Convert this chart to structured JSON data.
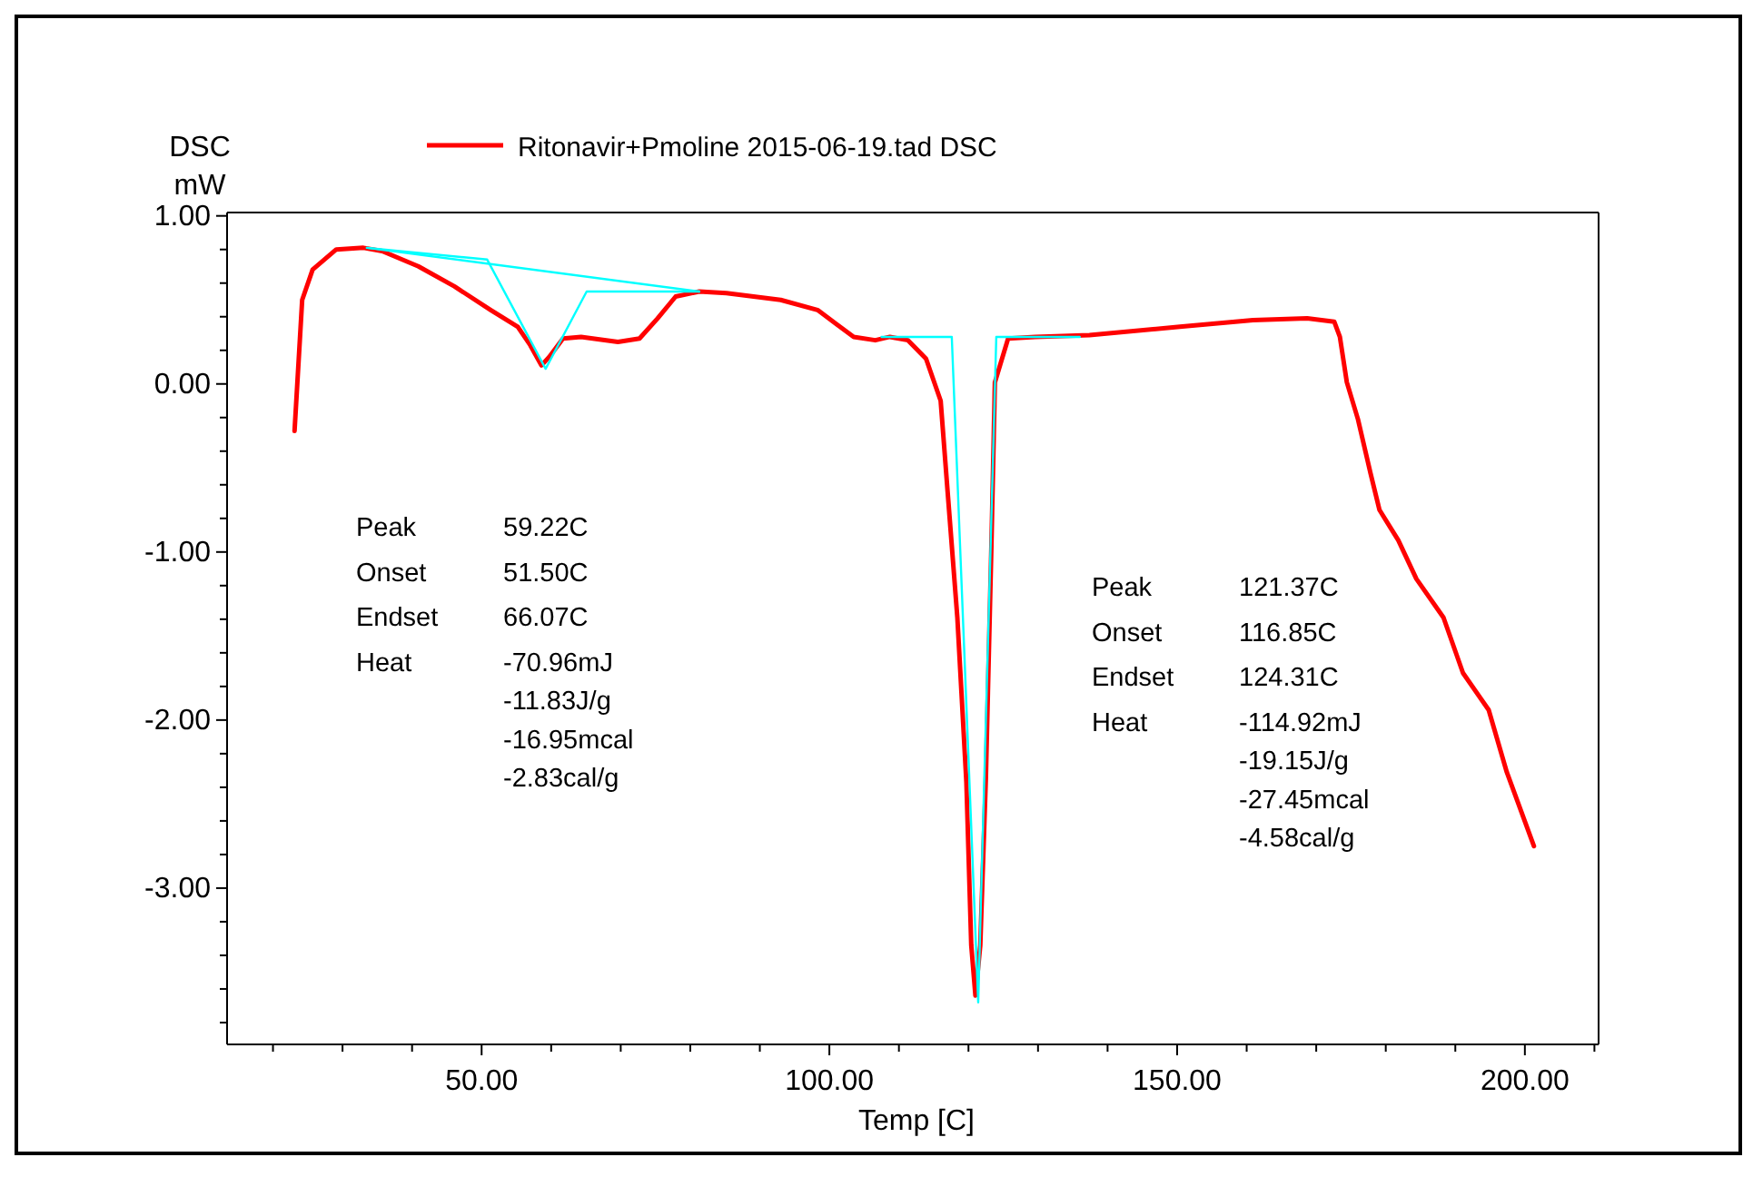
{
  "chart_data": {
    "type": "line",
    "xlabel": "Temp  [C]",
    "ylabel": "DSC\nmW",
    "xlim": [
      13.4,
      210.6
    ],
    "ylim": [
      -3.93,
      1.02
    ],
    "xticks": [
      {
        "value": 20,
        "label": null
      },
      {
        "value": 30,
        "label": null
      },
      {
        "value": 40,
        "label": null
      },
      {
        "value": 50,
        "label": "50.00"
      },
      {
        "value": 60,
        "label": null
      },
      {
        "value": 70,
        "label": null
      },
      {
        "value": 80,
        "label": null
      },
      {
        "value": 90,
        "label": null
      },
      {
        "value": 100,
        "label": "100.00"
      },
      {
        "value": 110,
        "label": null
      },
      {
        "value": 120,
        "label": null
      },
      {
        "value": 130,
        "label": null
      },
      {
        "value": 140,
        "label": null
      },
      {
        "value": 150,
        "label": "150.00"
      },
      {
        "value": 160,
        "label": null
      },
      {
        "value": 170,
        "label": null
      },
      {
        "value": 180,
        "label": null
      },
      {
        "value": 190,
        "label": null
      },
      {
        "value": 200,
        "label": "200.00"
      },
      {
        "value": 210,
        "label": null
      }
    ],
    "yticks": [
      {
        "value": -3.8,
        "label": null
      },
      {
        "value": -3.6,
        "label": null
      },
      {
        "value": -3.4,
        "label": null
      },
      {
        "value": -3.2,
        "label": null
      },
      {
        "value": -3,
        "label": "-3.00"
      },
      {
        "value": -2.8,
        "label": null
      },
      {
        "value": -2.6,
        "label": null
      },
      {
        "value": -2.4,
        "label": null
      },
      {
        "value": -2.2,
        "label": null
      },
      {
        "value": -2,
        "label": "-2.00"
      },
      {
        "value": -1.8,
        "label": null
      },
      {
        "value": -1.6,
        "label": null
      },
      {
        "value": -1.4,
        "label": null
      },
      {
        "value": -1.2,
        "label": null
      },
      {
        "value": -1,
        "label": "-1.00"
      },
      {
        "value": -0.8,
        "label": null
      },
      {
        "value": -0.6,
        "label": null
      },
      {
        "value": -0.4,
        "label": null
      },
      {
        "value": -0.2,
        "label": null
      },
      {
        "value": 0,
        "label": "0.00"
      },
      {
        "value": 0.2,
        "label": null
      },
      {
        "value": 0.4,
        "label": null
      },
      {
        "value": 0.6,
        "label": null
      },
      {
        "value": 0.8,
        "label": null
      },
      {
        "value": 1,
        "label": "1.00"
      }
    ],
    "grid": false,
    "legend": "top",
    "line_style": "solid",
    "marker": "none",
    "series": [
      {
        "name": "Ritonavir+Pmoline 2015-06-19.tad  DSC",
        "color": "#ff0000",
        "x": [
          23.1,
          24.2,
          25.7,
          29.1,
          33.0,
          35.7,
          40.9,
          46.1,
          51.3,
          55.2,
          57.0,
          58.6,
          59.7,
          61.7,
          64.3,
          69.6,
          72.7,
          75.3,
          77.9,
          81.3,
          85.2,
          93.0,
          98.3,
          100.9,
          103.5,
          106.6,
          108.7,
          111.3,
          113.9,
          116.0,
          117.0,
          118.4,
          119.7,
          120.4,
          121.0,
          121.7,
          122.5,
          123.3,
          123.8,
          125.7,
          129.6,
          137.4,
          150.4,
          160.9,
          168.7,
          172.6,
          173.4,
          174.4,
          176.0,
          177.8,
          179.1,
          181.8,
          184.4,
          188.3,
          191.1,
          194.8,
          197.4,
          201.3
        ],
        "values": [
          -0.28,
          0.5,
          0.68,
          0.8,
          0.81,
          0.79,
          0.7,
          0.58,
          0.44,
          0.34,
          0.23,
          0.11,
          0.16,
          0.27,
          0.28,
          0.25,
          0.27,
          0.39,
          0.52,
          0.55,
          0.54,
          0.5,
          0.44,
          0.36,
          0.28,
          0.26,
          0.28,
          0.26,
          0.15,
          -0.1,
          -0.64,
          -1.39,
          -2.37,
          -3.34,
          -3.64,
          -3.34,
          -2.35,
          -0.96,
          0.01,
          0.27,
          0.28,
          0.29,
          0.34,
          0.38,
          0.39,
          0.37,
          0.28,
          0.01,
          -0.21,
          -0.53,
          -0.75,
          -0.93,
          -1.16,
          -1.39,
          -1.72,
          -1.94,
          -2.31,
          -2.75
        ]
      },
      {
        "color": "#00ffff",
        "x": [
          33.5,
          50.8,
          59.2,
          65.1,
          81.3
        ],
        "values": [
          0.81,
          0.74,
          0.09,
          0.55,
          0.55
        ]
      },
      {
        "color": "#00ffff",
        "x": [
          33.5,
          81.3
        ],
        "values": [
          0.81,
          0.55
        ]
      },
      {
        "color": "#00ffff",
        "x": [
          107.5,
          117.6,
          121.4,
          124.0,
          136.0
        ],
        "values": [
          0.28,
          0.28,
          -3.68,
          0.28,
          0.28
        ]
      }
    ],
    "annotations": [
      "Peak\nOnset\nEndset\nHeat",
      "59.22C\n51.50C\n66.07C\n-70.96mJ\n-11.83J/g\n-16.95mcal\n-2.83cal/g",
      "Peak\nOnset\nEndset\nHeat",
      "121.37C\n116.85C\n124.31C\n-114.92mJ\n-19.15J/g\n-27.45mcal\n-4.58cal/g"
    ]
  }
}
